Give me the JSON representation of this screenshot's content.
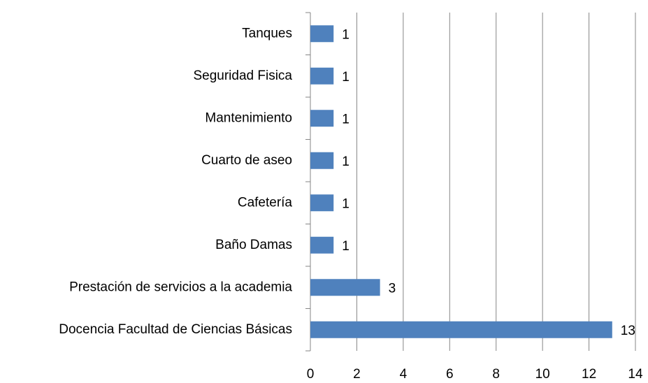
{
  "chart_data": {
    "type": "bar",
    "orientation": "horizontal",
    "categories": [
      "Docencia Facultad de Ciencias Básicas",
      "Prestación de servicios a la academia",
      "Baño Damas",
      "Cafetería",
      "Cuarto de aseo",
      "Mantenimiento",
      "Seguridad Fisica",
      "Tanques"
    ],
    "values": [
      13,
      3,
      1,
      1,
      1,
      1,
      1,
      1
    ],
    "color": "#4f81bd",
    "xlim": [
      0,
      14
    ],
    "xticks": [
      0,
      2,
      4,
      6,
      8,
      10,
      12,
      14
    ],
    "grid": true
  }
}
